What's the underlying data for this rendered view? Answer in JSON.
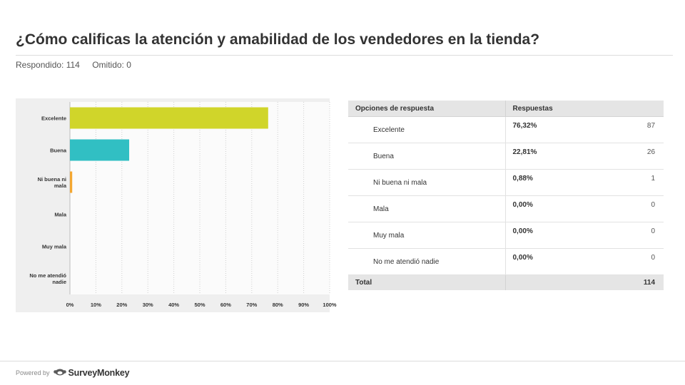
{
  "question": {
    "title": "¿Cómo calificas la atención y amabilidad de los vendedores en la tienda?",
    "answered": "Respondido: 114",
    "skipped": "Omitido: 0"
  },
  "chart_data": {
    "type": "bar",
    "orientation": "horizontal",
    "categories": [
      [
        "Excelente"
      ],
      [
        "Buena"
      ],
      [
        "Ni buena ni",
        "mala"
      ],
      [
        "Mala"
      ],
      [
        "Muy mala"
      ],
      [
        "No me atendió",
        "nadie"
      ]
    ],
    "values": [
      76.32,
      22.81,
      0.88,
      0,
      0,
      0
    ],
    "colors": [
      "#d0d52a",
      "#31bfc3",
      "#f4a731",
      "#9b9b9b",
      "#9b9b9b",
      "#9b9b9b"
    ],
    "xlim": [
      0,
      100
    ],
    "ticks": [
      "0%",
      "10%",
      "20%",
      "30%",
      "40%",
      "50%",
      "60%",
      "70%",
      "80%",
      "90%",
      "100%"
    ],
    "grid": true
  },
  "table": {
    "headers": [
      "Opciones de respuesta",
      "Respuestas"
    ],
    "rows": [
      {
        "option": "Excelente",
        "percent": "76,32%",
        "count": "87"
      },
      {
        "option": "Buena",
        "percent": "22,81%",
        "count": "26"
      },
      {
        "option": "Ni buena ni mala",
        "percent": "0,88%",
        "count": "1"
      },
      {
        "option": "Mala",
        "percent": "0,00%",
        "count": "0"
      },
      {
        "option": "Muy mala",
        "percent": "0,00%",
        "count": "0"
      },
      {
        "option": "No me atendió nadie",
        "percent": "0,00%",
        "count": "0"
      }
    ],
    "total_label": "Total",
    "total_value": "114"
  },
  "footer": {
    "powered_by": "Powered by",
    "brand": "SurveyMonkey",
    "logo_icon": "surveymonkey-logo-icon"
  }
}
